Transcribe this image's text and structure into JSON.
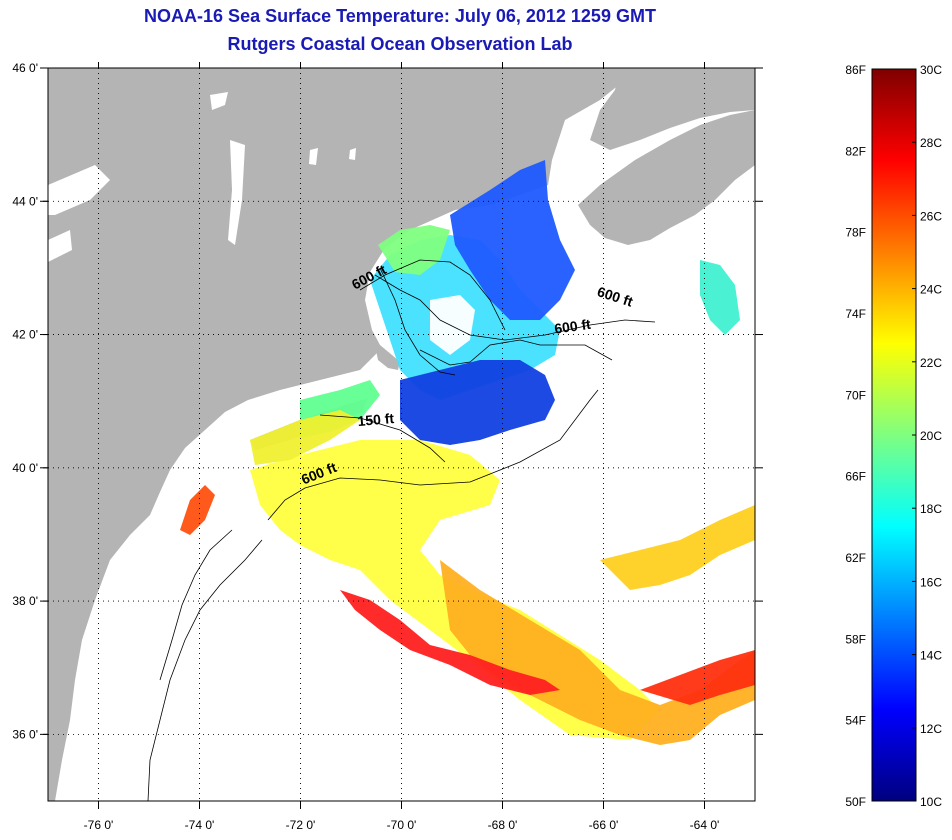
{
  "title": "NOAA-16 Sea Surface Temperature:  July 06, 2012 1259 GMT",
  "subtitle": "Rutgers Coastal Ocean Observation Lab",
  "colors": {
    "title": "#1a1ab4",
    "land": "#b4b4b4",
    "no_data": "#ffffff",
    "grid": "#000000"
  },
  "map": {
    "lon_range": [
      -77,
      -63
    ],
    "lat_range": [
      35,
      46
    ],
    "lon_ticks": [
      {
        "lon": -76,
        "label": "-76 0'"
      },
      {
        "lon": -74,
        "label": "-74 0'"
      },
      {
        "lon": -72,
        "label": "-72 0'"
      },
      {
        "lon": -70,
        "label": "-70 0'"
      },
      {
        "lon": -68,
        "label": "-68 0'"
      },
      {
        "lon": -66,
        "label": "-66 0'"
      },
      {
        "lon": -64,
        "label": "-64 0'"
      }
    ],
    "lat_ticks": [
      {
        "lat": 46,
        "label": "46 0'"
      },
      {
        "lat": 44,
        "label": "44 0'"
      },
      {
        "lat": 42,
        "label": "42 0'"
      },
      {
        "lat": 40,
        "label": "40 0'"
      },
      {
        "lat": 38,
        "label": "38 0'"
      },
      {
        "lat": 36,
        "label": "36 0'"
      }
    ],
    "contour_labels": [
      {
        "text": "600 ft",
        "lon": -70.6,
        "lat": 42.8
      },
      {
        "text": "600 ft",
        "lon": -65.8,
        "lat": 42.5
      },
      {
        "text": "600 ft",
        "lon": -66.6,
        "lat": 42.05
      },
      {
        "text": "150 ft",
        "lon": -70.5,
        "lat": 40.65
      },
      {
        "text": "600 ft",
        "lon": -71.6,
        "lat": 39.85
      }
    ]
  },
  "colorbar": {
    "range_f": [
      50,
      86
    ],
    "range_c": [
      10,
      30
    ],
    "f_labels": [
      "86F",
      "82F",
      "78F",
      "74F",
      "70F",
      "66F",
      "62F",
      "58F",
      "54F",
      "50F"
    ],
    "c_labels": [
      "30C",
      "28C",
      "26C",
      "24C",
      "22C",
      "20C",
      "18C",
      "16C",
      "14C",
      "12C",
      "10C"
    ],
    "colors": [
      "#00007f",
      "#0000ff",
      "#007fff",
      "#00ffff",
      "#7fff7f",
      "#ffff00",
      "#ff7f00",
      "#ff0000",
      "#7f0000"
    ]
  }
}
